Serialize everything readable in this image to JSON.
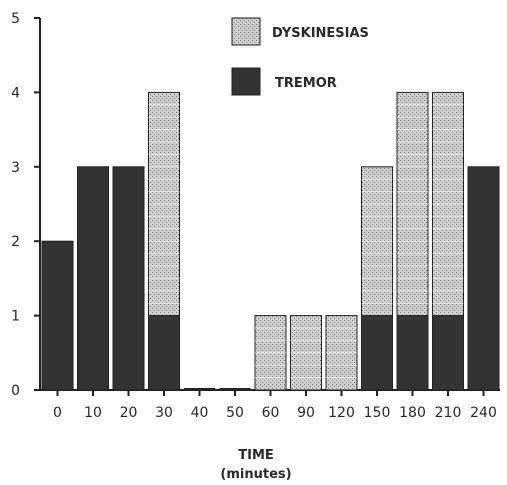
{
  "chart_data": {
    "type": "bar",
    "stacked": true,
    "categories": [
      "0",
      "10",
      "20",
      "30",
      "40",
      "50",
      "60",
      "90",
      "120",
      "150",
      "180",
      "210",
      "240"
    ],
    "series": [
      {
        "name": "TREMOR",
        "values": [
          2,
          3,
          3,
          1,
          0,
          0,
          0,
          0,
          0,
          1,
          1,
          1,
          3
        ],
        "color": "#333333"
      },
      {
        "name": "DYSKINESIAS",
        "values": [
          0,
          0,
          0,
          3,
          0,
          0,
          1,
          1,
          1,
          2,
          3,
          3,
          0
        ],
        "color": "#bdbdbd"
      }
    ],
    "xlabel": "TIME",
    "xlabel_sub": "(minutes)",
    "ylabel": "",
    "ylim": [
      0,
      5
    ],
    "yticks": [
      "0",
      "1",
      "2",
      "3",
      "4",
      "5"
    ],
    "grid": false,
    "legend_position": "top-right"
  }
}
